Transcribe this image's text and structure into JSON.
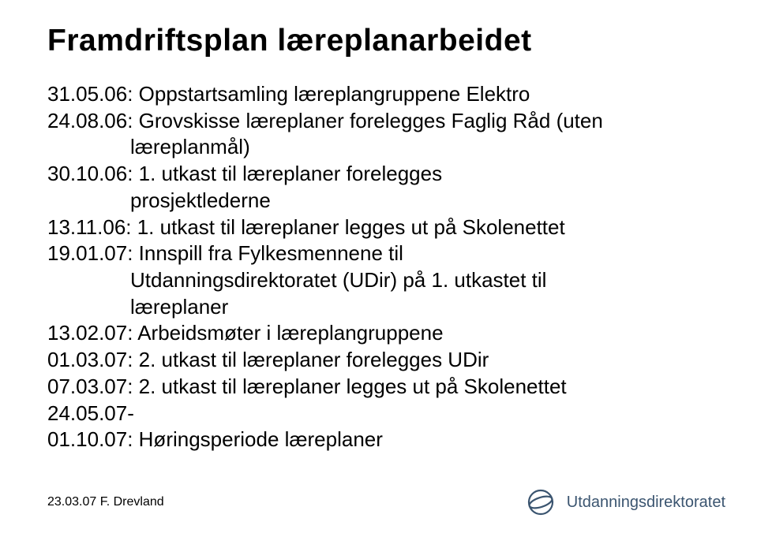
{
  "title": {
    "text": "Framdriftsplan læreplanarbeidet",
    "fontsize": 39,
    "color": "#000000"
  },
  "body": {
    "fontsize": 26,
    "color": "#000000",
    "lines": [
      {
        "text": "31.05.06: Oppstartsamling læreplangruppene Elektro",
        "sub": false
      },
      {
        "text": "24.08.06: Grovskisse læreplaner forelegges Faglig Råd (uten",
        "sub": false
      },
      {
        "text": "læreplanmål)",
        "sub": true
      },
      {
        "text": "30.10.06: 1. utkast til læreplaner forelegges",
        "sub": false
      },
      {
        "text": "prosjektlederne",
        "sub": true
      },
      {
        "text": "13.11.06: 1. utkast til læreplaner legges ut på Skolenettet",
        "sub": false
      },
      {
        "text": "19.01.07: Innspill fra Fylkesmennene til",
        "sub": false
      },
      {
        "text": "Utdanningsdirektoratet (UDir) på 1. utkastet til",
        "sub": true
      },
      {
        "text": "læreplaner",
        "sub": true
      },
      {
        "text": "13.02.07: Arbeidsmøter i læreplangruppene",
        "sub": false
      },
      {
        "text": "01.03.07: 2. utkast til læreplaner forelegges UDir",
        "sub": false
      },
      {
        "text": "07.03.07: 2. utkast til læreplaner legges ut på Skolenettet",
        "sub": false
      },
      {
        "text": "24.05.07-",
        "sub": false
      },
      {
        "text": "01.10.07: Høringsperiode læreplaner",
        "sub": false
      }
    ]
  },
  "footer": {
    "left_text": "23.03.07 F. Drevland",
    "left_fontsize": 16,
    "logo_text": "Utdanningsdirektoratet",
    "logo_fontsize": 20,
    "logo_color": "#3b5570"
  }
}
